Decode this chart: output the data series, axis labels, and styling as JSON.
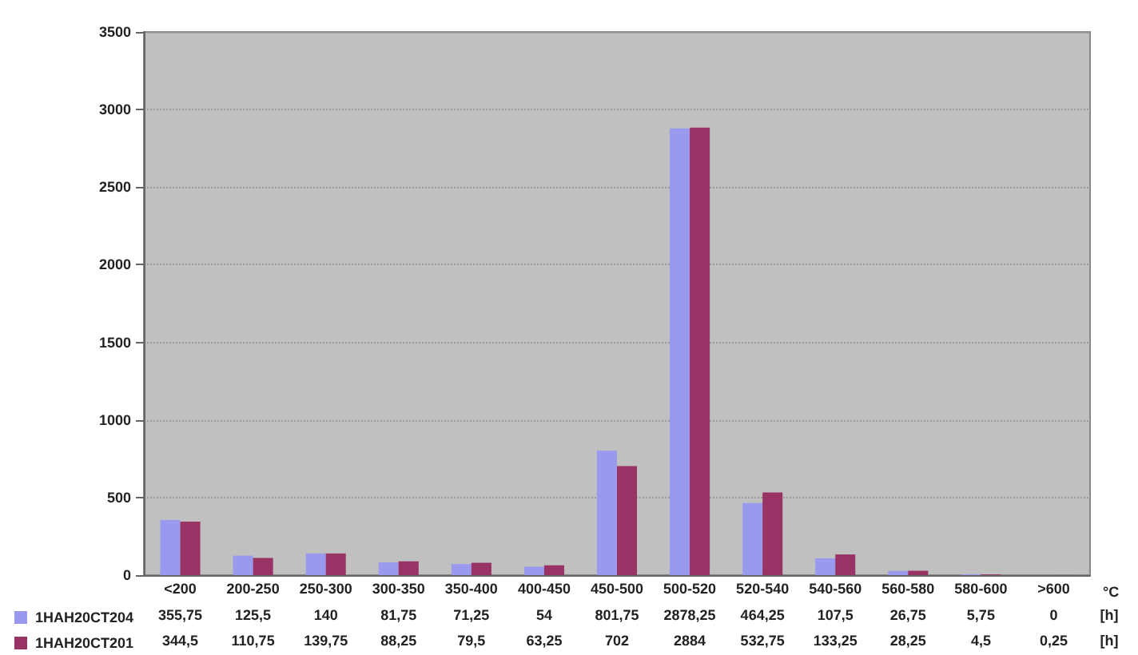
{
  "chart_data": {
    "type": "bar",
    "categories": [
      "<200",
      "200-250",
      "250-300",
      "300-350",
      "350-400",
      "400-450",
      "450-500",
      "500-520",
      "520-540",
      "540-560",
      "560-580",
      "580-600",
      ">600"
    ],
    "xlabel": "°C",
    "series": [
      {
        "name": "1HAH20CT204",
        "color": "#9999ee",
        "values": [
          355.75,
          125.5,
          140,
          81.75,
          71.25,
          54,
          801.75,
          2878.25,
          464.25,
          107.5,
          26.75,
          5.75,
          0
        ],
        "value_labels": [
          "355,75",
          "125,5",
          "140",
          "81,75",
          "71,25",
          "54",
          "801,75",
          "2878,25",
          "464,25",
          "107,5",
          "26,75",
          "5,75",
          "0"
        ]
      },
      {
        "name": "1HAH20CT201",
        "color": "#993366",
        "values": [
          344.5,
          110.75,
          139.75,
          88.25,
          79.5,
          63.25,
          702,
          2884,
          532.75,
          133.25,
          28.25,
          4.5,
          0.25
        ],
        "value_labels": [
          "344,5",
          "110,75",
          "139,75",
          "88,25",
          "79,5",
          "63,25",
          "702",
          "2884",
          "532,75",
          "133,25",
          "28,25",
          "4,5",
          "0,25"
        ]
      }
    ],
    "annotations": [
      "[h]",
      "[h]"
    ],
    "ylim": [
      0,
      3500
    ],
    "yticks": [
      0,
      500,
      1000,
      1500,
      2000,
      2500,
      3000,
      3500
    ],
    "grid": "y",
    "legend": "bottom left"
  }
}
